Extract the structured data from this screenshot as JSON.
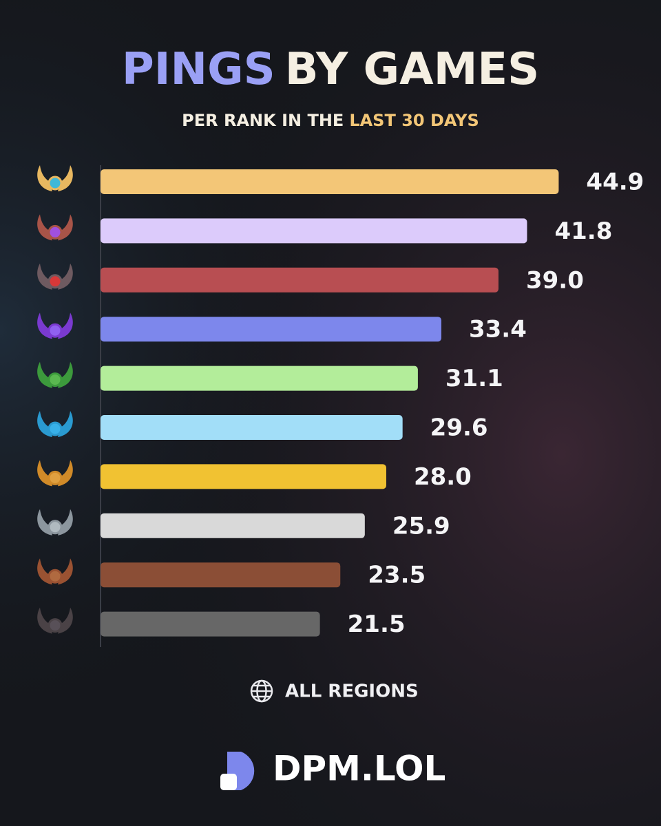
{
  "chart_data": {
    "type": "bar",
    "orientation": "horizontal",
    "title_parts": [
      "PINGS",
      "BY GAMES"
    ],
    "subtitle_parts": [
      "PER RANK IN THE",
      "LAST 30 DAYS"
    ],
    "categories": [
      null,
      null,
      null,
      null,
      null,
      null,
      null,
      null,
      null,
      null
    ],
    "values": [
      44.9,
      41.8,
      39.0,
      33.4,
      31.1,
      29.6,
      28.0,
      25.9,
      23.5,
      21.5
    ],
    "value_labels": [
      "44.9",
      "41.8",
      "39.0",
      "33.4",
      "31.1",
      "29.6",
      "28.0",
      "25.9",
      "23.5",
      "21.5"
    ],
    "colors": [
      "#f3c677",
      "#dccbfb",
      "#b84e52",
      "#7d87ec",
      "#b3ed9a",
      "#a2def8",
      "#f1c232",
      "#d9d9d9",
      "#8b4e36",
      "#676767"
    ],
    "xlim": [
      0,
      50
    ],
    "footer_region": "ALL REGIONS",
    "brand": "DPM.LOL"
  }
}
